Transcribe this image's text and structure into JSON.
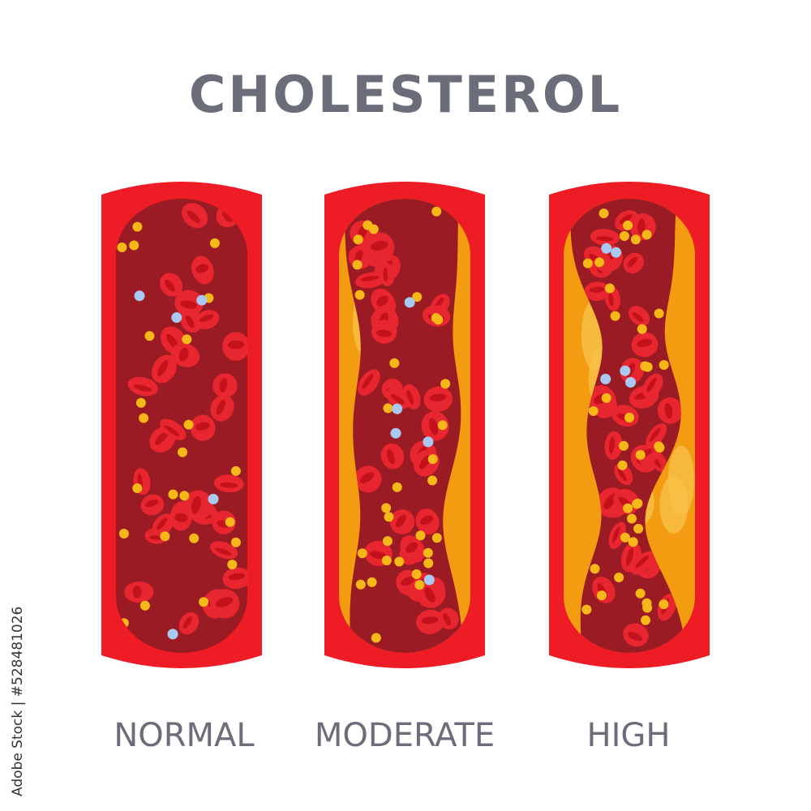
{
  "title": "CHOLESTEROL",
  "vessels": [
    {
      "label": "NORMAL",
      "plaque_level": 0
    },
    {
      "label": "MODERATE",
      "plaque_level": 0.5
    },
    {
      "label": "HIGH",
      "plaque_level": 1
    }
  ],
  "credit": "Adobe Stock | #528481026",
  "colors": {
    "title": "#6b6e7a",
    "vessel_wall": "#ee1c25",
    "lumen": "#9b1b24",
    "red_cell": "#e8262f",
    "red_cell_center": "#c4121c",
    "cholesterol_particle": "#f6b818",
    "white_cell": "#a9c8f2",
    "plaque": "#f39c12",
    "plaque_light": "#f8c147"
  }
}
